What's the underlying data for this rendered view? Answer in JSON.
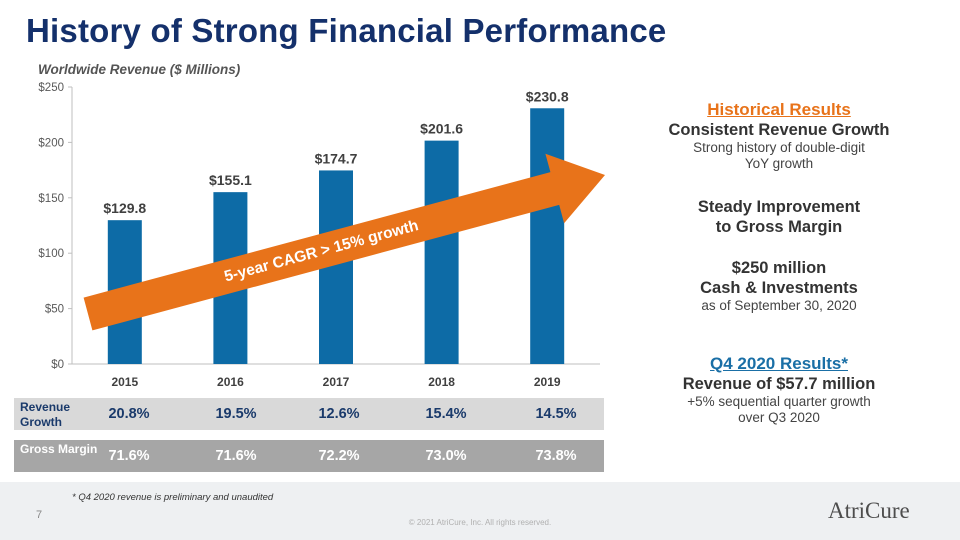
{
  "title": "History of Strong Financial Performance",
  "chart_data": {
    "type": "bar",
    "title": "Worldwide Revenue ($ Millions)",
    "categories": [
      "2015",
      "2016",
      "2017",
      "2018",
      "2019"
    ],
    "values": [
      129.8,
      155.1,
      174.7,
      201.6,
      230.8
    ],
    "value_labels": [
      "$129.8",
      "$155.1",
      "$174.7",
      "$201.6",
      "$230.8"
    ],
    "ylim": [
      0,
      250
    ],
    "yticks": [
      0,
      50,
      100,
      150,
      200,
      250
    ],
    "ytick_labels": [
      "$0",
      "$50",
      "$100",
      "$150",
      "$200",
      "$250"
    ],
    "bar_color": "#0d6ba6",
    "annotation": "5-year CAGR > 15% growth",
    "annotation_color": "#e8731a",
    "grid": false,
    "legend": "none"
  },
  "table": {
    "revenue_growth_label": "Revenue Growth",
    "revenue_growth": [
      "20.8%",
      "19.5%",
      "12.6%",
      "15.4%",
      "14.5%"
    ],
    "gross_margin_label": "Gross Margin",
    "gross_margin": [
      "71.6%",
      "71.6%",
      "72.2%",
      "73.0%",
      "73.8%"
    ]
  },
  "panel": {
    "historical_title": "Historical  Results",
    "historical_color": "#e8731a",
    "consistent_growth": "Consistent Revenue Growth",
    "strong_history_1": "Strong history  of double-digit",
    "strong_history_2": "YoY growth",
    "steady_1": "Steady Improvement",
    "steady_2": "to Gross Margin",
    "cash_1": "$250 million",
    "cash_2": "Cash & Investments",
    "cash_3": "as of September 30, 2020",
    "q4_title": "Q4 2020 Results*",
    "q4_color": "#1a6fa6",
    "q4_revenue": "Revenue of $57.7 million",
    "q4_growth_1": "+5% sequential quarter growth",
    "q4_growth_2": "over Q3 2020"
  },
  "footnote": "* Q4 2020 revenue is preliminary and unaudited",
  "page_number": "7",
  "copyright": "© 2021 AtriCure, Inc. All rights reserved.",
  "logo_text": "AtriCure"
}
